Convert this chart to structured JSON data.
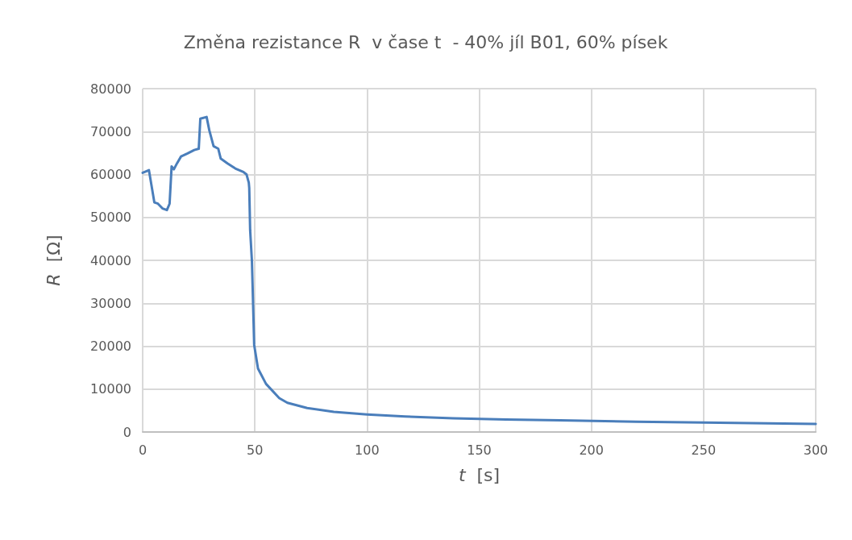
{
  "chart_data": {
    "type": "line",
    "title": "Změna rezistance R  v čase t  - 40% jíl B01, 60% písek",
    "xlabel": "t  [s]",
    "ylabel": "R  [Ω]",
    "series": [
      {
        "color": "#4a7ebb",
        "x": [
          0,
          2.8,
          5.2,
          6.8,
          8.8,
          10.8,
          12,
          12.9,
          13.9,
          15.3,
          17.1,
          20,
          23,
          25,
          25.7,
          28.5,
          29.7,
          31.6,
          33.7,
          34.8,
          37.8,
          41.3,
          44.9,
          46.3,
          47.3,
          47.5,
          47.9,
          48.7,
          49.7,
          51.4,
          55,
          60.9,
          64.5,
          73.3,
          85.2,
          100,
          117,
          138.5,
          162,
          186,
          220,
          250,
          300
        ],
        "values": [
          60400,
          61000,
          53500,
          53200,
          52100,
          51700,
          53200,
          61900,
          61200,
          62600,
          64200,
          64900,
          65700,
          66000,
          73000,
          73400,
          70300,
          66600,
          66000,
          63700,
          62600,
          61400,
          60600,
          60000,
          58100,
          56900,
          47100,
          39800,
          20300,
          14800,
          11200,
          7900,
          6800,
          5600,
          4700,
          4100,
          3600,
          3200,
          2900,
          2700,
          2400,
          2200,
          1900
        ]
      }
    ],
    "xlim": [
      0,
      300
    ],
    "xticks": [
      0,
      50,
      100,
      150,
      200,
      250,
      300
    ],
    "ylim": [
      0,
      80000
    ],
    "yticks": [
      0,
      10000,
      20000,
      30000,
      40000,
      50000,
      60000,
      70000,
      80000
    ],
    "grid": true,
    "marker": "none",
    "line_style": "solid"
  }
}
